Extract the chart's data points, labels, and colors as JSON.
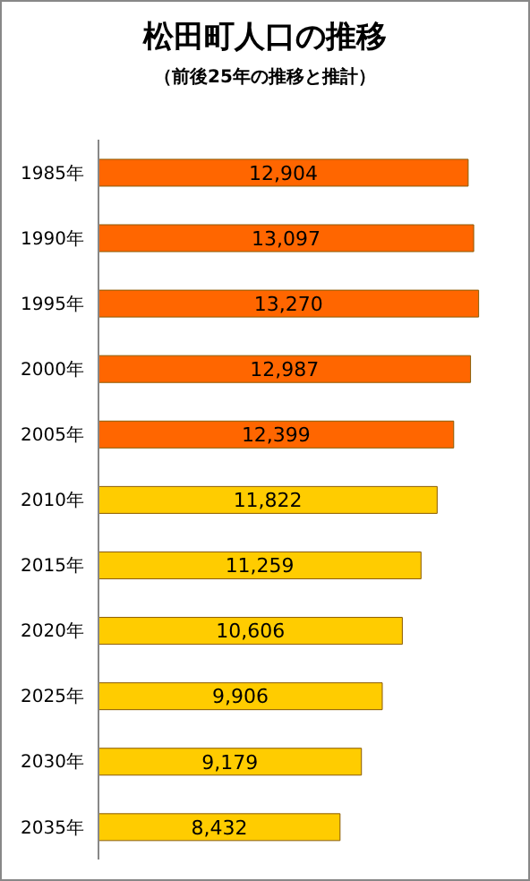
{
  "chart_data": {
    "type": "bar",
    "orientation": "horizontal",
    "title": "松田町人口の推移",
    "subtitle": "（前後25年の推移と推計）",
    "categories": [
      "1985年",
      "1990年",
      "1995年",
      "2000年",
      "2005年",
      "2010年",
      "2015年",
      "2020年",
      "2025年",
      "2030年",
      "2035年"
    ],
    "values": [
      12904,
      13097,
      13270,
      12987,
      12399,
      11822,
      11259,
      10606,
      9906,
      9179,
      8432
    ],
    "colors": [
      "#ff6600",
      "#ff6600",
      "#ff6600",
      "#ff6600",
      "#ff6600",
      "#ffcc00",
      "#ffcc00",
      "#ffcc00",
      "#ffcc00",
      "#ffcc00",
      "#ffcc00"
    ],
    "value_labels": [
      "12,904",
      "13,097",
      "13,270",
      "12,987",
      "12,399",
      "11,822",
      "11,259",
      "10,606",
      "9,906",
      "9,179",
      "8,432"
    ],
    "tick_labels": "y"
  }
}
